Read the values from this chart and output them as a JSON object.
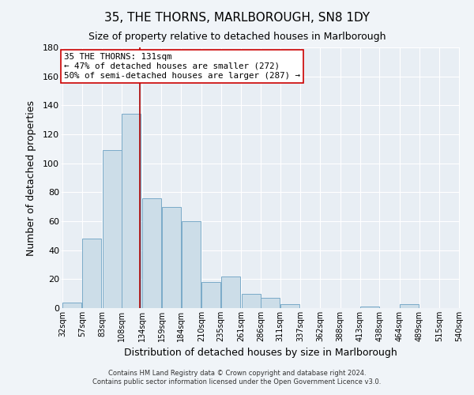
{
  "title": "35, THE THORNS, MARLBOROUGH, SN8 1DY",
  "subtitle": "Size of property relative to detached houses in Marlborough",
  "xlabel": "Distribution of detached houses by size in Marlborough",
  "ylabel": "Number of detached properties",
  "bar_color": "#ccdde8",
  "bar_edge_color": "#7aaac8",
  "background_color": "#f0f4f8",
  "plot_bg_color": "#e8eef4",
  "vline_x": 131,
  "vline_color": "#aa0000",
  "bins": [
    32,
    57,
    83,
    108,
    134,
    159,
    184,
    210,
    235,
    261,
    286,
    311,
    337,
    362,
    388,
    413,
    438,
    464,
    489,
    515,
    540
  ],
  "heights": [
    4,
    48,
    109,
    134,
    76,
    70,
    60,
    18,
    22,
    10,
    7,
    3,
    0,
    0,
    0,
    1,
    0,
    3,
    0,
    0
  ],
  "ylim": [
    0,
    180
  ],
  "yticks": [
    0,
    20,
    40,
    60,
    80,
    100,
    120,
    140,
    160,
    180
  ],
  "annotation_line1": "35 THE THORNS: 131sqm",
  "annotation_line2": "← 47% of detached houses are smaller (272)",
  "annotation_line3": "50% of semi-detached houses are larger (287) →",
  "footer_line1": "Contains HM Land Registry data © Crown copyright and database right 2024.",
  "footer_line2": "Contains public sector information licensed under the Open Government Licence v3.0."
}
